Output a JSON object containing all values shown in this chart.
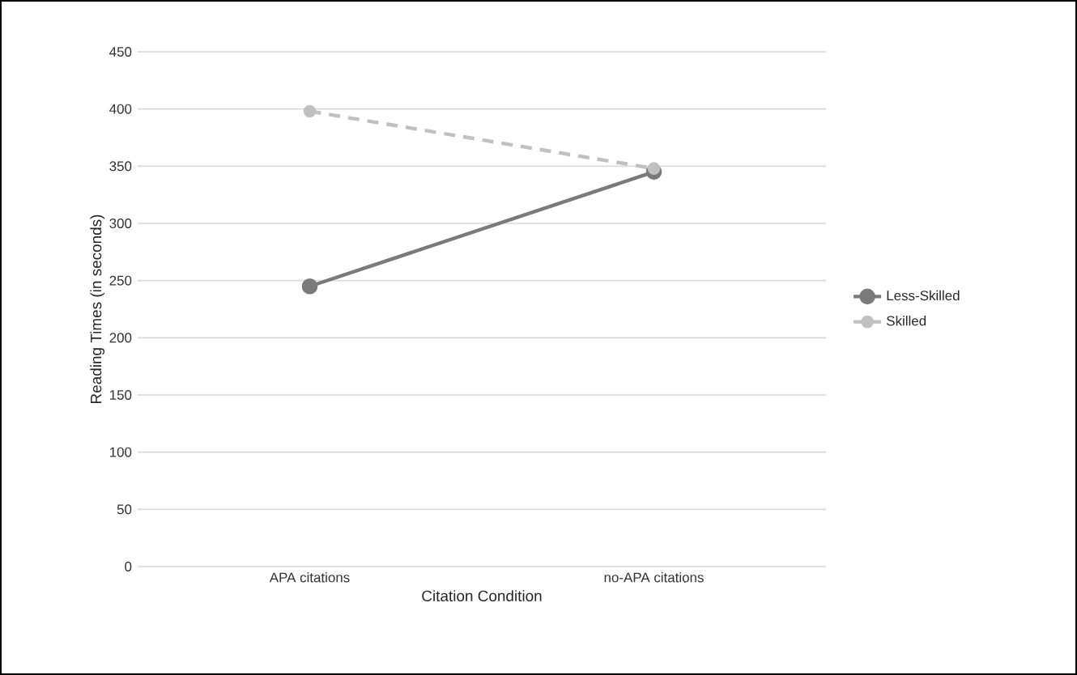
{
  "chart_data": {
    "type": "line",
    "xlabel": "Citation Condition",
    "ylabel": "Reading Times (in seconds)",
    "categories": [
      "APA citations",
      "no-APA citations"
    ],
    "series": [
      {
        "name": "Less-Skilled",
        "color": "#7a7a7a",
        "values": [
          245,
          345
        ],
        "line_style": "solid"
      },
      {
        "name": "Skilled",
        "color": "#c0c0c0",
        "values": [
          398,
          348
        ],
        "line_style": "dashed"
      }
    ],
    "ylim": [
      0,
      450
    ],
    "yticks": [
      0,
      50,
      100,
      150,
      200,
      250,
      300,
      350,
      400,
      450
    ],
    "grid": "y",
    "legend": "right",
    "marker": "circle"
  }
}
